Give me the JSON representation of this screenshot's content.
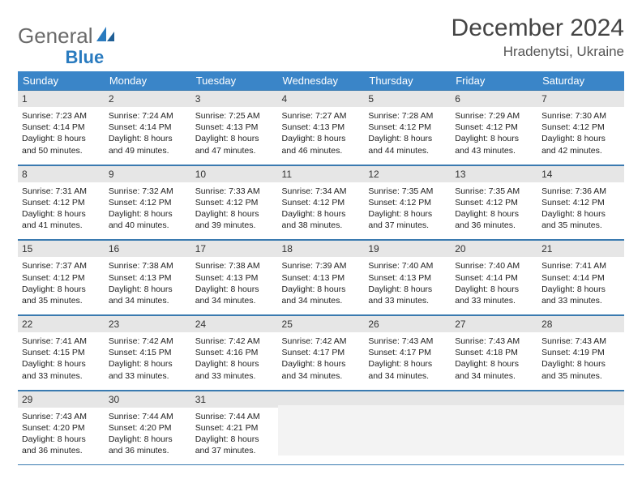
{
  "brand": {
    "name_a": "General",
    "name_b": "Blue"
  },
  "title": "December 2024",
  "location": "Hradenytsi, Ukraine",
  "colors": {
    "header_bg": "#3a85c8",
    "rule": "#3a7ab0",
    "daynum_bg": "#e6e6e6",
    "empty_bg": "#f3f3f3",
    "logo_gray": "#6a6a6a",
    "logo_blue": "#2a7bbf"
  },
  "day_headers": [
    "Sunday",
    "Monday",
    "Tuesday",
    "Wednesday",
    "Thursday",
    "Friday",
    "Saturday"
  ],
  "weeks": [
    [
      {
        "n": "1",
        "sunrise": "7:23 AM",
        "sunset": "4:14 PM",
        "daylight": "8 hours and 50 minutes."
      },
      {
        "n": "2",
        "sunrise": "7:24 AM",
        "sunset": "4:14 PM",
        "daylight": "8 hours and 49 minutes."
      },
      {
        "n": "3",
        "sunrise": "7:25 AM",
        "sunset": "4:13 PM",
        "daylight": "8 hours and 47 minutes."
      },
      {
        "n": "4",
        "sunrise": "7:27 AM",
        "sunset": "4:13 PM",
        "daylight": "8 hours and 46 minutes."
      },
      {
        "n": "5",
        "sunrise": "7:28 AM",
        "sunset": "4:12 PM",
        "daylight": "8 hours and 44 minutes."
      },
      {
        "n": "6",
        "sunrise": "7:29 AM",
        "sunset": "4:12 PM",
        "daylight": "8 hours and 43 minutes."
      },
      {
        "n": "7",
        "sunrise": "7:30 AM",
        "sunset": "4:12 PM",
        "daylight": "8 hours and 42 minutes."
      }
    ],
    [
      {
        "n": "8",
        "sunrise": "7:31 AM",
        "sunset": "4:12 PM",
        "daylight": "8 hours and 41 minutes."
      },
      {
        "n": "9",
        "sunrise": "7:32 AM",
        "sunset": "4:12 PM",
        "daylight": "8 hours and 40 minutes."
      },
      {
        "n": "10",
        "sunrise": "7:33 AM",
        "sunset": "4:12 PM",
        "daylight": "8 hours and 39 minutes."
      },
      {
        "n": "11",
        "sunrise": "7:34 AM",
        "sunset": "4:12 PM",
        "daylight": "8 hours and 38 minutes."
      },
      {
        "n": "12",
        "sunrise": "7:35 AM",
        "sunset": "4:12 PM",
        "daylight": "8 hours and 37 minutes."
      },
      {
        "n": "13",
        "sunrise": "7:35 AM",
        "sunset": "4:12 PM",
        "daylight": "8 hours and 36 minutes."
      },
      {
        "n": "14",
        "sunrise": "7:36 AM",
        "sunset": "4:12 PM",
        "daylight": "8 hours and 35 minutes."
      }
    ],
    [
      {
        "n": "15",
        "sunrise": "7:37 AM",
        "sunset": "4:12 PM",
        "daylight": "8 hours and 35 minutes."
      },
      {
        "n": "16",
        "sunrise": "7:38 AM",
        "sunset": "4:13 PM",
        "daylight": "8 hours and 34 minutes."
      },
      {
        "n": "17",
        "sunrise": "7:38 AM",
        "sunset": "4:13 PM",
        "daylight": "8 hours and 34 minutes."
      },
      {
        "n": "18",
        "sunrise": "7:39 AM",
        "sunset": "4:13 PM",
        "daylight": "8 hours and 34 minutes."
      },
      {
        "n": "19",
        "sunrise": "7:40 AM",
        "sunset": "4:13 PM",
        "daylight": "8 hours and 33 minutes."
      },
      {
        "n": "20",
        "sunrise": "7:40 AM",
        "sunset": "4:14 PM",
        "daylight": "8 hours and 33 minutes."
      },
      {
        "n": "21",
        "sunrise": "7:41 AM",
        "sunset": "4:14 PM",
        "daylight": "8 hours and 33 minutes."
      }
    ],
    [
      {
        "n": "22",
        "sunrise": "7:41 AM",
        "sunset": "4:15 PM",
        "daylight": "8 hours and 33 minutes."
      },
      {
        "n": "23",
        "sunrise": "7:42 AM",
        "sunset": "4:15 PM",
        "daylight": "8 hours and 33 minutes."
      },
      {
        "n": "24",
        "sunrise": "7:42 AM",
        "sunset": "4:16 PM",
        "daylight": "8 hours and 33 minutes."
      },
      {
        "n": "25",
        "sunrise": "7:42 AM",
        "sunset": "4:17 PM",
        "daylight": "8 hours and 34 minutes."
      },
      {
        "n": "26",
        "sunrise": "7:43 AM",
        "sunset": "4:17 PM",
        "daylight": "8 hours and 34 minutes."
      },
      {
        "n": "27",
        "sunrise": "7:43 AM",
        "sunset": "4:18 PM",
        "daylight": "8 hours and 34 minutes."
      },
      {
        "n": "28",
        "sunrise": "7:43 AM",
        "sunset": "4:19 PM",
        "daylight": "8 hours and 35 minutes."
      }
    ],
    [
      {
        "n": "29",
        "sunrise": "7:43 AM",
        "sunset": "4:20 PM",
        "daylight": "8 hours and 36 minutes."
      },
      {
        "n": "30",
        "sunrise": "7:44 AM",
        "sunset": "4:20 PM",
        "daylight": "8 hours and 36 minutes."
      },
      {
        "n": "31",
        "sunrise": "7:44 AM",
        "sunset": "4:21 PM",
        "daylight": "8 hours and 37 minutes."
      },
      null,
      null,
      null,
      null
    ]
  ],
  "labels": {
    "sunrise": "Sunrise:",
    "sunset": "Sunset:",
    "daylight": "Daylight:"
  }
}
